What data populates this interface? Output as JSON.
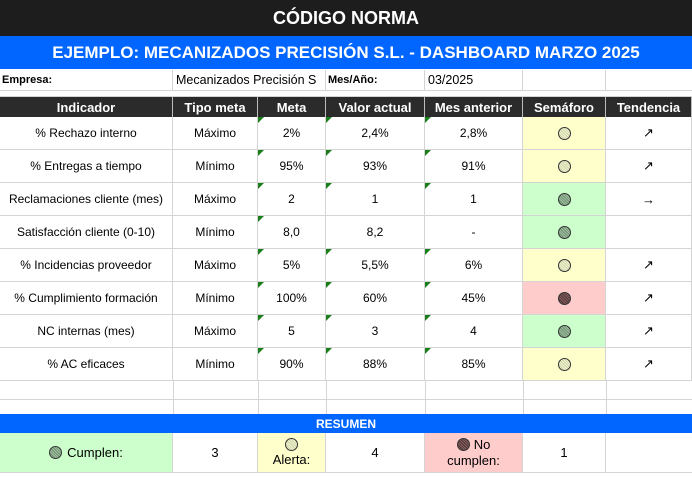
{
  "title": "CÓDIGO NORMA",
  "subtitle": "EJEMPLO: MECANIZADOS PRECISIÓN S.L. - DASHBOARD MARZO 2025",
  "info": {
    "company_label": "Empresa:",
    "company_value": "Mecanizados Precisión S",
    "period_label": "Mes/Año:",
    "period_value": "03/2025"
  },
  "table": {
    "headers": [
      "Indicador",
      "Tipo meta",
      "Meta",
      "Valor actual",
      "Mes anterior",
      "Semáforo",
      "Tendencia"
    ],
    "rows": [
      {
        "indicador": "% Rechazo interno",
        "tipo": "Máximo",
        "meta": "2%",
        "actual": "2,4%",
        "anterior": "2,8%",
        "semaforo": "yellow",
        "tendencia": "↗"
      },
      {
        "indicador": "% Entregas a tiempo",
        "tipo": "Mínimo",
        "meta": "95%",
        "actual": "93%",
        "anterior": "91%",
        "semaforo": "yellow",
        "tendencia": "↗"
      },
      {
        "indicador": "Reclamaciones cliente (mes)",
        "tipo": "Máximo",
        "meta": "2",
        "actual": "1",
        "anterior": "1",
        "semaforo": "green",
        "tendencia": "→"
      },
      {
        "indicador": "Satisfacción cliente (0-10)",
        "tipo": "Mínimo",
        "meta": "8,0",
        "actual": "8,2",
        "anterior": "-",
        "semaforo": "green",
        "tendencia": ""
      },
      {
        "indicador": "% Incidencias proveedor",
        "tipo": "Máximo",
        "meta": "5%",
        "actual": "5,5%",
        "anterior": "6%",
        "semaforo": "yellow",
        "tendencia": "↗"
      },
      {
        "indicador": "% Cumplimiento formación",
        "tipo": "Mínimo",
        "meta": "100%",
        "actual": "60%",
        "anterior": "45%",
        "semaforo": "red",
        "tendencia": "↗"
      },
      {
        "indicador": "NC internas (mes)",
        "tipo": "Máximo",
        "meta": "5",
        "actual": "3",
        "anterior": "4",
        "semaforo": "green",
        "tendencia": "↗"
      },
      {
        "indicador": "% AC eficaces",
        "tipo": "Mínimo",
        "meta": "90%",
        "actual": "88%",
        "anterior": "85%",
        "semaforo": "yellow",
        "tendencia": "↗"
      }
    ]
  },
  "summary": {
    "title": "RESUMEN",
    "cumplen_label": "Cumplen:",
    "cumplen_value": "3",
    "alerta_label": "Alerta:",
    "alerta_value": "4",
    "nocumplen_label_1": "No",
    "nocumplen_label_2": "cumplen:",
    "nocumplen_value": "1"
  },
  "colors": {
    "title_bg": "#1d1d1d",
    "subtitle_bg": "#0066ff",
    "header_bg": "#2b2b2b",
    "green_bg": "#ccffcc",
    "yellow_bg": "#ffffcc",
    "red_bg": "#ffcccc"
  }
}
